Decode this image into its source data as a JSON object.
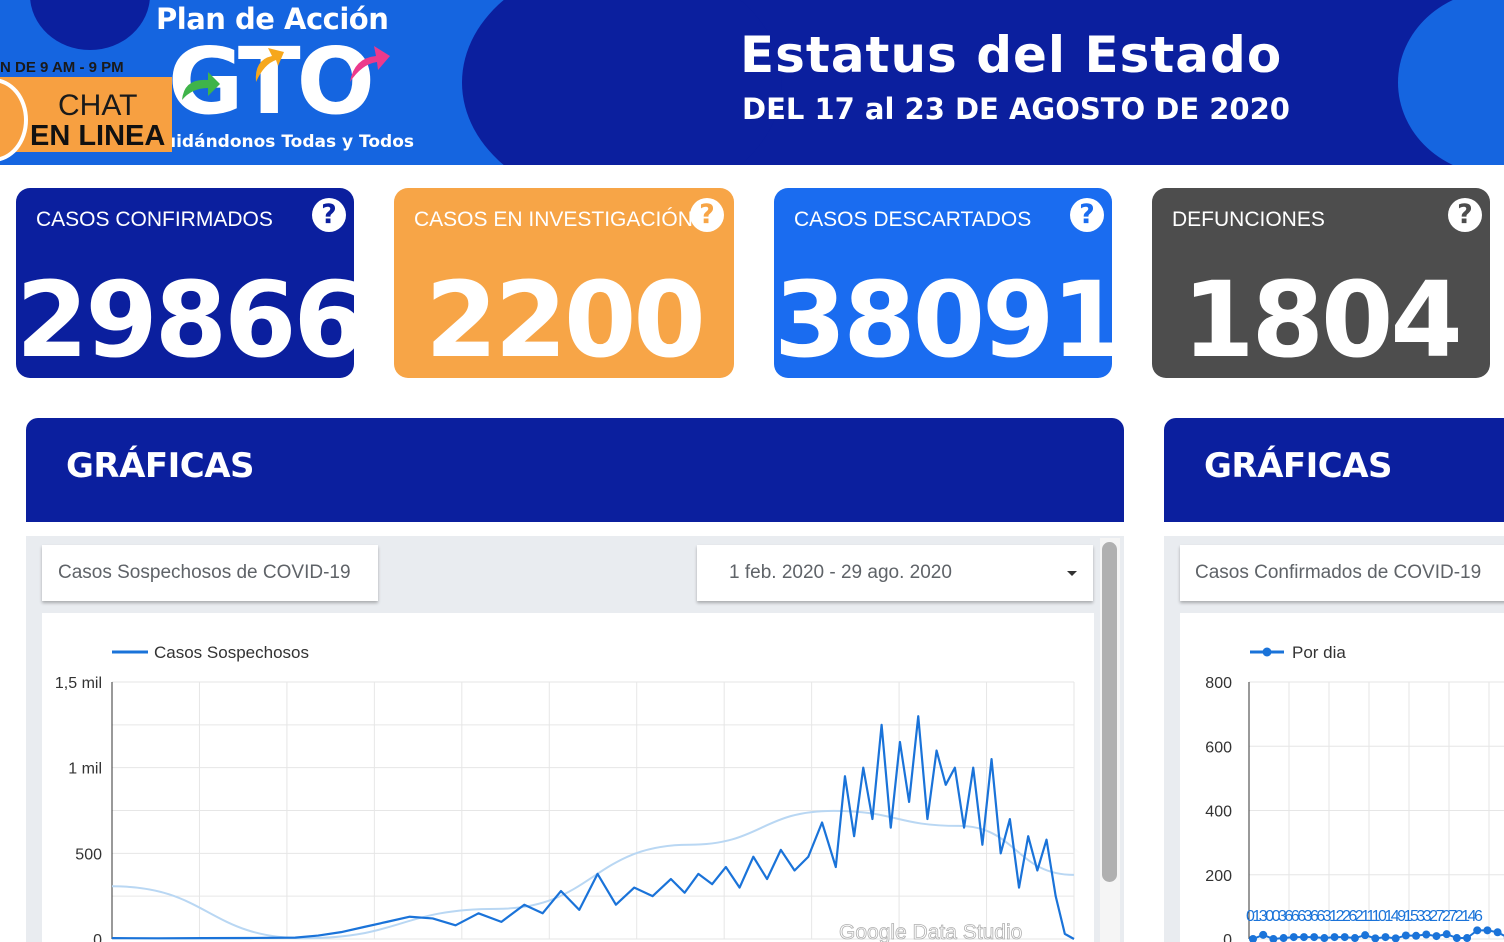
{
  "header": {
    "logo": {
      "top_text": "Plan de Acción",
      "main_text": "GTO",
      "tagline": "uidándonos Todas y Todos"
    },
    "chat": {
      "hours": "N DE 9 AM - 9 PM",
      "line1": "CHAT",
      "line2": "EN LINEA"
    },
    "title": "Estatus del Estado",
    "subtitle": "DEL 17 al 23 DE AGOSTO DE 2020"
  },
  "cards": [
    {
      "label": "CASOS CONFIRMADOS",
      "value": "29866",
      "help": "?",
      "color": "#0b1f9e"
    },
    {
      "label": "CASOS EN INVESTIGACIÓN",
      "value": "2200",
      "help": "?",
      "color": "#f7a547"
    },
    {
      "label": "CASOS DESCARTADOS",
      "value": "38091",
      "help": "?",
      "color": "#1a6cf0"
    },
    {
      "label": "DEFUNCIONES",
      "value": "1804",
      "help": "?",
      "color": "#4d4d4d"
    }
  ],
  "panels": [
    {
      "title": "GRÁFICAS",
      "selector": "Casos Sospechosos de COVID-19",
      "date_range": "1 feb. 2020 - 29 ago. 2020"
    },
    {
      "title": "GRÁFICAS",
      "selector": "Casos Confirmados de COVID-19"
    }
  ],
  "watermark": "Google Data Studio",
  "colors": {
    "navy": "#0b1f9e",
    "blue": "#1565e0",
    "orange": "#f7a547",
    "gray": "#4d4d4d",
    "line": "#1a73d9",
    "trend": "#b9d7f3"
  },
  "chart_data": [
    {
      "type": "line",
      "legend": "Casos Sospechosos",
      "y_tick_labels": [
        "0",
        "500",
        "1 mil",
        "1,5 mil"
      ],
      "ylim": [
        0,
        1500
      ],
      "xlim": [
        "2020-02-01",
        "2020-08-29"
      ],
      "grid": true,
      "legend_position": "top-left",
      "trend_line": true,
      "series": [
        {
          "name": "Casos Sospechosos",
          "x": [
            "2020-02-01",
            "2020-02-11",
            "2020-02-21",
            "2020-03-02",
            "2020-03-12",
            "2020-03-17",
            "2020-03-22",
            "2020-03-27",
            "2020-04-01",
            "2020-04-06",
            "2020-04-11",
            "2020-04-16",
            "2020-04-21",
            "2020-04-26",
            "2020-05-01",
            "2020-05-05",
            "2020-05-09",
            "2020-05-13",
            "2020-05-17",
            "2020-05-21",
            "2020-05-25",
            "2020-05-29",
            "2020-06-02",
            "2020-06-05",
            "2020-06-08",
            "2020-06-11",
            "2020-06-14",
            "2020-06-17",
            "2020-06-20",
            "2020-06-23",
            "2020-06-26",
            "2020-06-29",
            "2020-07-02",
            "2020-07-05",
            "2020-07-08",
            "2020-07-10",
            "2020-07-12",
            "2020-07-14",
            "2020-07-16",
            "2020-07-18",
            "2020-07-20",
            "2020-07-22",
            "2020-07-24",
            "2020-07-26",
            "2020-07-28",
            "2020-07-30",
            "2020-08-01",
            "2020-08-03",
            "2020-08-05",
            "2020-08-07",
            "2020-08-09",
            "2020-08-11",
            "2020-08-13",
            "2020-08-15",
            "2020-08-17",
            "2020-08-19",
            "2020-08-21",
            "2020-08-23",
            "2020-08-25",
            "2020-08-27",
            "2020-08-29"
          ],
          "y": [
            5,
            4,
            5,
            6,
            8,
            20,
            40,
            70,
            100,
            130,
            120,
            80,
            150,
            100,
            200,
            150,
            280,
            170,
            380,
            200,
            300,
            250,
            350,
            270,
            380,
            320,
            420,
            300,
            480,
            350,
            520,
            400,
            480,
            680,
            420,
            950,
            600,
            1000,
            700,
            1250,
            650,
            1150,
            800,
            1300,
            700,
            1100,
            900,
            1000,
            650,
            1000,
            550,
            1050,
            500,
            700,
            300,
            600,
            400,
            580,
            250,
            30,
            0
          ]
        }
      ]
    },
    {
      "type": "line",
      "legend": "Por dia",
      "y_tick_labels": [
        "0",
        "200",
        "400",
        "600",
        "800"
      ],
      "ylim": [
        0,
        800
      ],
      "grid": true,
      "legend_position": "top-left",
      "data_labels": "0130036663663122621110149153327272146",
      "series": [
        {
          "name": "Por dia",
          "values": [
            0,
            13,
            0,
            3,
            6,
            6,
            6,
            3,
            6,
            6,
            3,
            12,
            2,
            6,
            2,
            11,
            10,
            14,
            9,
            15,
            3,
            3,
            27,
            27,
            21,
            4,
            6
          ]
        }
      ]
    }
  ]
}
